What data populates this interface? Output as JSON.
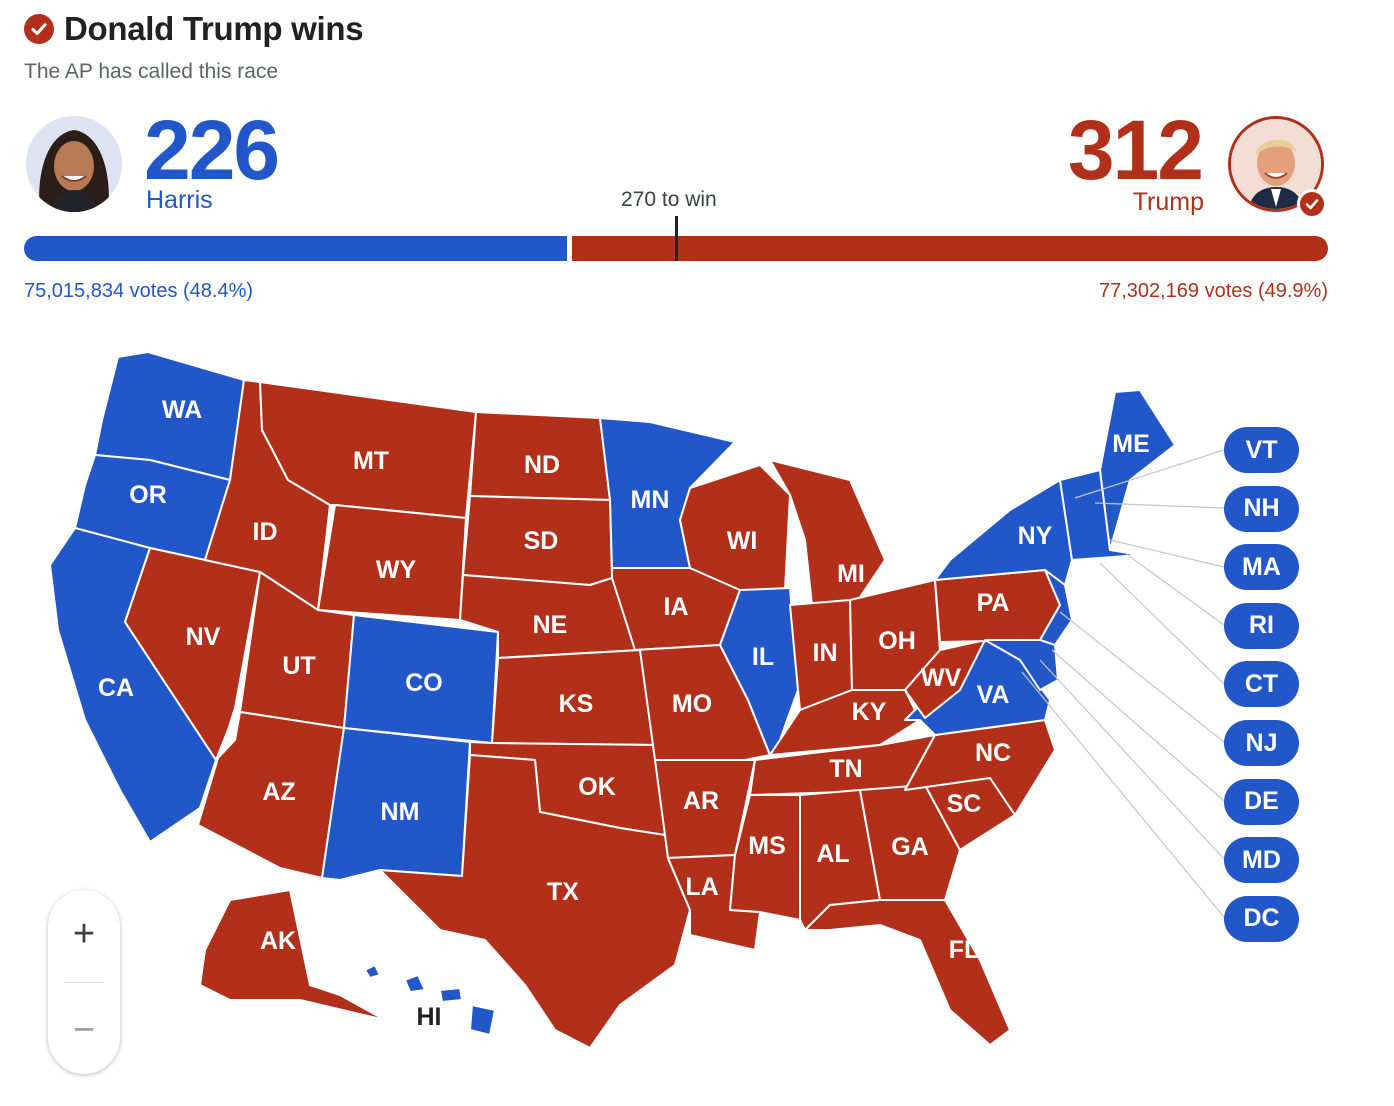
{
  "header": {
    "title": "Donald Trump wins",
    "subtitle": "The AP has called this race"
  },
  "candidates": {
    "harris": {
      "name": "Harris",
      "electoral_votes": "226",
      "popular_votes": "75,015,834 votes (48.4%)",
      "color": "#2157c8"
    },
    "trump": {
      "name": "Trump",
      "electoral_votes": "312",
      "popular_votes": "77,302,169 votes (49.9%)",
      "color": "#b2301a"
    }
  },
  "threshold": {
    "label": "270 to win",
    "value": 270,
    "total": 538
  },
  "colors": {
    "dem": "#2157c8",
    "rep": "#b2301a"
  },
  "states": {
    "WA": "dem",
    "OR": "dem",
    "CA": "dem",
    "NV": "rep",
    "ID": "rep",
    "MT": "rep",
    "WY": "rep",
    "UT": "rep",
    "CO": "dem",
    "AZ": "rep",
    "NM": "dem",
    "ND": "rep",
    "SD": "rep",
    "NE": "rep",
    "KS": "rep",
    "OK": "rep",
    "TX": "rep",
    "MN": "dem",
    "IA": "rep",
    "MO": "rep",
    "AR": "rep",
    "LA": "rep",
    "WI": "rep",
    "IL": "dem",
    "MI": "rep",
    "IN": "rep",
    "OH": "rep",
    "KY": "rep",
    "TN": "rep",
    "MS": "rep",
    "AL": "rep",
    "GA": "rep",
    "FL": "rep",
    "SC": "rep",
    "NC": "rep",
    "VA": "dem",
    "WV": "rep",
    "PA": "rep",
    "NY": "dem",
    "ME": "dem",
    "AK": "rep",
    "HI": "dem"
  },
  "small_states": [
    "VT",
    "NH",
    "MA",
    "RI",
    "CT",
    "NJ",
    "DE",
    "MD",
    "DC"
  ],
  "zoom": {
    "in_label": "+",
    "out_label": "−"
  }
}
